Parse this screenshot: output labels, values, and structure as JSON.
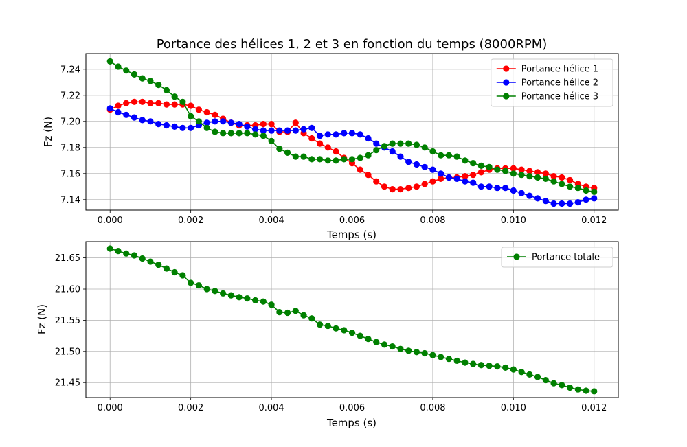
{
  "chart_data": [
    {
      "type": "line",
      "title": "Portance des hélices 1, 2 et 3 en fonction du temps (8000RPM)",
      "xlabel": "Temps (s)",
      "ylabel": "Fz (N)",
      "xlim": [
        -0.0006,
        0.0126
      ],
      "ylim": [
        7.132,
        7.252
      ],
      "xticks": [
        0.0,
        0.002,
        0.004,
        0.006,
        0.008,
        0.01,
        0.012
      ],
      "xtick_labels": [
        "0.000",
        "0.002",
        "0.004",
        "0.006",
        "0.008",
        "0.010",
        "0.012"
      ],
      "yticks": [
        7.14,
        7.16,
        7.18,
        7.2,
        7.22,
        7.24
      ],
      "ytick_labels": [
        "7.14",
        "7.16",
        "7.18",
        "7.20",
        "7.22",
        "7.24"
      ],
      "grid": true,
      "legend": "top-right",
      "x": [
        0.0,
        0.0002,
        0.0004,
        0.0006,
        0.0008,
        0.001,
        0.0012,
        0.0014,
        0.0016,
        0.0018,
        0.002,
        0.0022,
        0.0024,
        0.0026,
        0.0028,
        0.003,
        0.0032,
        0.0034,
        0.0036,
        0.0038,
        0.004,
        0.0042,
        0.0044,
        0.0046,
        0.0048,
        0.005,
        0.0052,
        0.0054,
        0.0056,
        0.0058,
        0.006,
        0.0062,
        0.0064,
        0.0066,
        0.0068,
        0.007,
        0.0072,
        0.0074,
        0.0076,
        0.0078,
        0.008,
        0.0082,
        0.0084,
        0.0086,
        0.0088,
        0.009,
        0.0092,
        0.0094,
        0.0096,
        0.0098,
        0.01,
        0.0102,
        0.0104,
        0.0106,
        0.0108,
        0.011,
        0.0112,
        0.0114,
        0.0116,
        0.0118,
        0.012
      ],
      "series": [
        {
          "name": "Portance hélice 1",
          "color": "#ff0000",
          "values": [
            7.209,
            7.212,
            7.214,
            7.215,
            7.215,
            7.214,
            7.214,
            7.213,
            7.213,
            7.213,
            7.212,
            7.209,
            7.207,
            7.205,
            7.202,
            7.199,
            7.197,
            7.197,
            7.197,
            7.198,
            7.198,
            7.192,
            7.192,
            7.199,
            7.191,
            7.187,
            7.183,
            7.18,
            7.177,
            7.172,
            7.168,
            7.163,
            7.159,
            7.154,
            7.15,
            7.148,
            7.148,
            7.149,
            7.15,
            7.152,
            7.154,
            7.156,
            7.157,
            7.157,
            7.158,
            7.159,
            7.161,
            7.163,
            7.164,
            7.164,
            7.164,
            7.163,
            7.162,
            7.161,
            7.16,
            7.158,
            7.157,
            7.155,
            7.152,
            7.15,
            7.149
          ]
        },
        {
          "name": "Portance hélice 2",
          "color": "#0000ff",
          "values": [
            7.21,
            7.207,
            7.205,
            7.203,
            7.201,
            7.2,
            7.198,
            7.197,
            7.196,
            7.195,
            7.195,
            7.197,
            7.199,
            7.2,
            7.2,
            7.199,
            7.198,
            7.196,
            7.194,
            7.193,
            7.193,
            7.193,
            7.193,
            7.193,
            7.194,
            7.195,
            7.189,
            7.19,
            7.19,
            7.191,
            7.191,
            7.19,
            7.187,
            7.183,
            7.18,
            7.177,
            7.173,
            7.169,
            7.167,
            7.165,
            7.163,
            7.16,
            7.157,
            7.156,
            7.154,
            7.153,
            7.15,
            7.15,
            7.149,
            7.149,
            7.147,
            7.145,
            7.143,
            7.141,
            7.139,
            7.137,
            7.137,
            7.137,
            7.138,
            7.14,
            7.141
          ]
        },
        {
          "name": "Portance hélice 3",
          "color": "#008000",
          "values": [
            7.246,
            7.242,
            7.239,
            7.236,
            7.233,
            7.231,
            7.228,
            7.224,
            7.219,
            7.215,
            7.204,
            7.2,
            7.195,
            7.192,
            7.191,
            7.191,
            7.191,
            7.191,
            7.19,
            7.189,
            7.185,
            7.179,
            7.176,
            7.173,
            7.173,
            7.171,
            7.171,
            7.17,
            7.17,
            7.171,
            7.171,
            7.172,
            7.174,
            7.178,
            7.181,
            7.183,
            7.183,
            7.183,
            7.182,
            7.18,
            7.177,
            7.174,
            7.174,
            7.173,
            7.17,
            7.168,
            7.166,
            7.165,
            7.163,
            7.162,
            7.16,
            7.159,
            7.158,
            7.157,
            7.156,
            7.154,
            7.152,
            7.15,
            7.149,
            7.147,
            7.146
          ]
        }
      ]
    },
    {
      "type": "line",
      "title": "",
      "xlabel": "Temps (s)",
      "ylabel": "Fz (N)",
      "xlim": [
        -0.0006,
        0.0126
      ],
      "ylim": [
        21.426,
        21.676
      ],
      "xticks": [
        0.0,
        0.002,
        0.004,
        0.006,
        0.008,
        0.01,
        0.012
      ],
      "xtick_labels": [
        "0.000",
        "0.002",
        "0.004",
        "0.006",
        "0.008",
        "0.010",
        "0.012"
      ],
      "yticks": [
        21.45,
        21.5,
        21.55,
        21.6,
        21.65
      ],
      "ytick_labels": [
        "21.45",
        "21.50",
        "21.55",
        "21.60",
        "21.65"
      ],
      "grid": true,
      "legend": "top-right",
      "x": [
        0.0,
        0.0002,
        0.0004,
        0.0006,
        0.0008,
        0.001,
        0.0012,
        0.0014,
        0.0016,
        0.0018,
        0.002,
        0.0022,
        0.0024,
        0.0026,
        0.0028,
        0.003,
        0.0032,
        0.0034,
        0.0036,
        0.0038,
        0.004,
        0.0042,
        0.0044,
        0.0046,
        0.0048,
        0.005,
        0.0052,
        0.0054,
        0.0056,
        0.0058,
        0.006,
        0.0062,
        0.0064,
        0.0066,
        0.0068,
        0.007,
        0.0072,
        0.0074,
        0.0076,
        0.0078,
        0.008,
        0.0082,
        0.0084,
        0.0086,
        0.0088,
        0.009,
        0.0092,
        0.0094,
        0.0096,
        0.0098,
        0.01,
        0.0102,
        0.0104,
        0.0106,
        0.0108,
        0.011,
        0.0112,
        0.0114,
        0.0116,
        0.0118,
        0.012
      ],
      "series": [
        {
          "name": "Portance totale",
          "color": "#008000",
          "values": [
            21.665,
            21.661,
            21.657,
            21.654,
            21.649,
            21.644,
            21.639,
            21.633,
            21.627,
            21.622,
            21.61,
            21.606,
            21.6,
            21.597,
            21.593,
            21.59,
            21.587,
            21.585,
            21.582,
            21.58,
            21.575,
            21.563,
            21.562,
            21.565,
            21.558,
            21.553,
            21.543,
            21.541,
            21.537,
            21.534,
            21.53,
            21.525,
            21.52,
            21.515,
            21.511,
            21.508,
            21.504,
            21.501,
            21.499,
            21.497,
            21.494,
            21.491,
            21.488,
            21.485,
            21.482,
            21.48,
            21.478,
            21.477,
            21.476,
            21.474,
            21.471,
            21.467,
            21.463,
            21.459,
            21.454,
            21.449,
            21.446,
            21.442,
            21.439,
            21.437,
            21.436
          ]
        }
      ]
    }
  ]
}
